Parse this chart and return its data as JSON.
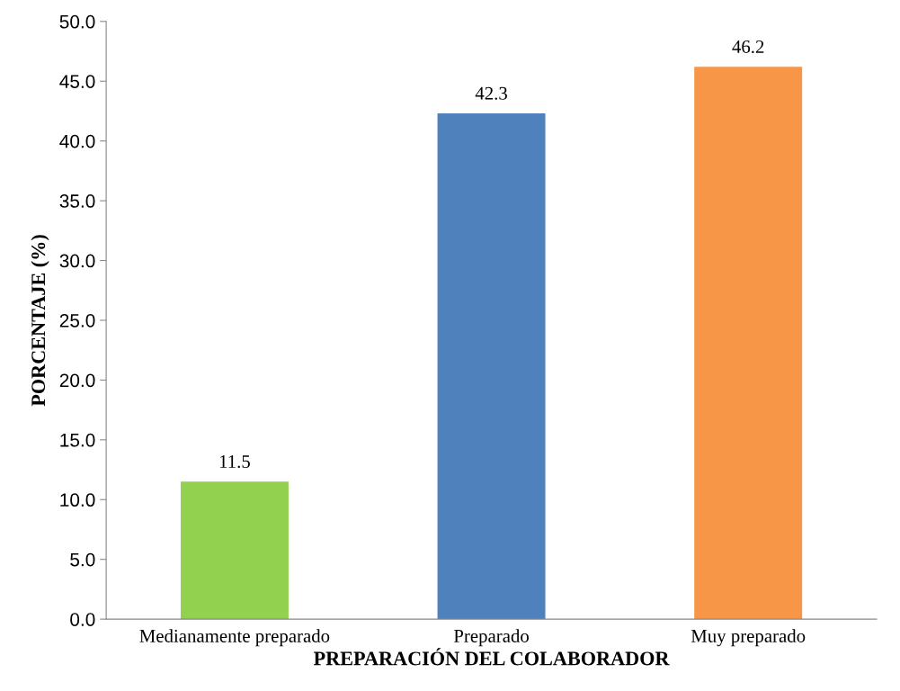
{
  "chart_data": {
    "type": "bar",
    "xlabel": "PREPARACIÓN DEL COLABORADOR",
    "ylabel": "PORCENTAJE (%)",
    "categories": [
      "Medianamente preparado",
      "Preparado",
      "Muy preparado"
    ],
    "values": [
      11.5,
      42.3,
      46.2
    ],
    "colors": [
      "#92d050",
      "#4f81bd",
      "#f79646"
    ],
    "ylim": [
      0,
      50
    ],
    "yticks": [
      {
        "value": 0,
        "label": "0.0"
      },
      {
        "value": 5,
        "label": "5.0"
      },
      {
        "value": 10,
        "label": "10.0"
      },
      {
        "value": 15,
        "label": "15.0"
      },
      {
        "value": 20,
        "label": "20.0"
      },
      {
        "value": 25,
        "label": "25.0"
      },
      {
        "value": 30,
        "label": "30.0"
      },
      {
        "value": 35,
        "label": "35.0"
      },
      {
        "value": 40,
        "label": "40.0"
      },
      {
        "value": 45,
        "label": "45.0"
      },
      {
        "value": 50,
        "label": "50.0"
      }
    ],
    "data_labels": true,
    "grid": false
  }
}
